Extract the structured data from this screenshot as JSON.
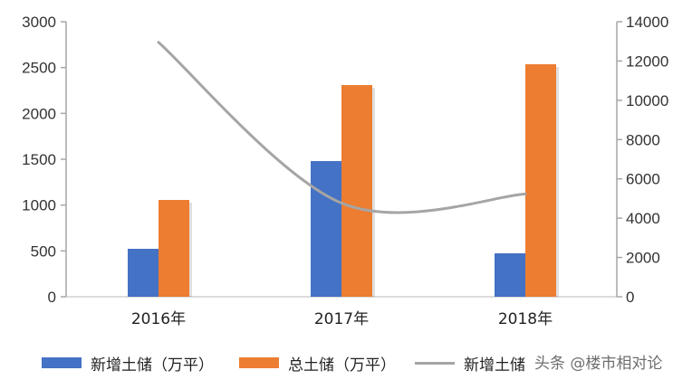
{
  "chart_data": {
    "type": "bar+line",
    "title": "",
    "categories": [
      "2016年",
      "2017年",
      "2018年"
    ],
    "series": [
      {
        "name": "新增土储（万平）",
        "type": "bar",
        "axis": "left",
        "color": "#4472c4",
        "values": [
          523,
          1480,
          474
        ]
      },
      {
        "name": "总土储（万平）",
        "type": "bar",
        "axis": "left",
        "color": "#ed7d31",
        "values": [
          1056,
          2309,
          2536
        ]
      },
      {
        "name": "新增土储",
        "type": "line",
        "axis": "right",
        "color": "#a5a5a5",
        "values": [
          12950,
          4770,
          5230
        ]
      }
    ],
    "y_left": {
      "ylim": [
        0,
        3000
      ],
      "ticks": [
        "0",
        "500",
        "1000",
        "1500",
        "2000",
        "2500",
        "3000"
      ]
    },
    "y_right": {
      "ylim": [
        0,
        14000
      ],
      "ticks": [
        "0",
        "2000",
        "4000",
        "6000",
        "8000",
        "10000",
        "12000",
        "14000"
      ]
    },
    "xlabel": "",
    "ylabel": "",
    "grid": false,
    "legend_position": "bottom"
  },
  "legend": {
    "items": [
      {
        "label": "新增土储（万平）",
        "color": "#4472c4"
      },
      {
        "label": "总土储（万平）",
        "color": "#ed7d31"
      },
      {
        "label": "新增土储",
        "color": "#a5a5a5"
      }
    ]
  },
  "watermark": "头条 @楼市相对论"
}
